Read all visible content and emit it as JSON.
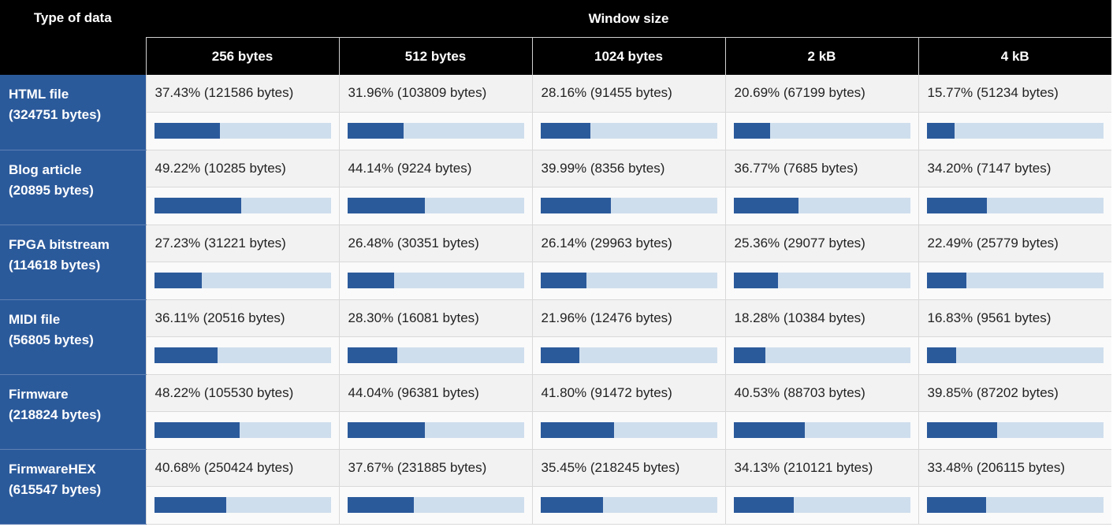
{
  "header": {
    "corner_label": "Type of data",
    "group_label": "Window size",
    "columns": [
      "256 bytes",
      "512 bytes",
      "1024 bytes",
      "2 kB",
      "4 kB"
    ]
  },
  "rows": [
    {
      "name": "HTML file",
      "size": "(324751 bytes)",
      "cells": [
        {
          "text": "37.43% (121586 bytes)",
          "ratio": 0.3743
        },
        {
          "text": "31.96% (103809 bytes)",
          "ratio": 0.3196
        },
        {
          "text": "28.16% (91455 bytes)",
          "ratio": 0.2816
        },
        {
          "text": "20.69% (67199 bytes)",
          "ratio": 0.2069
        },
        {
          "text": "15.77% (51234 bytes)",
          "ratio": 0.1577
        }
      ]
    },
    {
      "name": "Blog article",
      "size": "(20895 bytes)",
      "cells": [
        {
          "text": "49.22% (10285 bytes)",
          "ratio": 0.4922
        },
        {
          "text": "44.14% (9224 bytes)",
          "ratio": 0.4414
        },
        {
          "text": "39.99% (8356 bytes)",
          "ratio": 0.3999
        },
        {
          "text": "36.77% (7685 bytes)",
          "ratio": 0.3677
        },
        {
          "text": "34.20% (7147 bytes)",
          "ratio": 0.342
        }
      ]
    },
    {
      "name": "FPGA bitstream",
      "size": "(114618 bytes)",
      "cells": [
        {
          "text": "27.23% (31221 bytes)",
          "ratio": 0.2723
        },
        {
          "text": "26.48% (30351 bytes)",
          "ratio": 0.2648
        },
        {
          "text": "26.14% (29963 bytes)",
          "ratio": 0.2614
        },
        {
          "text": "25.36% (29077 bytes)",
          "ratio": 0.2536
        },
        {
          "text": "22.49% (25779 bytes)",
          "ratio": 0.2249
        }
      ]
    },
    {
      "name": "MIDI file",
      "size": "(56805 bytes)",
      "cells": [
        {
          "text": "36.11% (20516 bytes)",
          "ratio": 0.3611
        },
        {
          "text": "28.30% (16081 bytes)",
          "ratio": 0.283
        },
        {
          "text": "21.96% (12476 bytes)",
          "ratio": 0.2196
        },
        {
          "text": "18.28% (10384 bytes)",
          "ratio": 0.1828
        },
        {
          "text": "16.83% (9561 bytes)",
          "ratio": 0.1683
        }
      ]
    },
    {
      "name": "Firmware",
      "size": "(218824 bytes)",
      "cells": [
        {
          "text": "48.22% (105530 bytes)",
          "ratio": 0.4822
        },
        {
          "text": "44.04% (96381 bytes)",
          "ratio": 0.4404
        },
        {
          "text": "41.80% (91472 bytes)",
          "ratio": 0.418
        },
        {
          "text": "40.53% (88703 bytes)",
          "ratio": 0.4053
        },
        {
          "text": "39.85% (87202 bytes)",
          "ratio": 0.3985
        }
      ]
    },
    {
      "name": "FirmwareHEX",
      "size": "(615547 bytes)",
      "cells": [
        {
          "text": "40.68% (250424 bytes)",
          "ratio": 0.4068
        },
        {
          "text": "37.67% (231885 bytes)",
          "ratio": 0.3767
        },
        {
          "text": "35.45% (218245 bytes)",
          "ratio": 0.3545
        },
        {
          "text": "34.13% (210121 bytes)",
          "ratio": 0.3413
        },
        {
          "text": "33.48% (206115 bytes)",
          "ratio": 0.3348
        }
      ]
    }
  ],
  "colors": {
    "header_bg": "#000000",
    "row_header_bg": "#2b5a9b",
    "bar_fill": "#2b5a9b",
    "bar_track": "#cfdeed",
    "value_bg": "#f2f2f2",
    "bar_row_bg": "#fafafa"
  }
}
